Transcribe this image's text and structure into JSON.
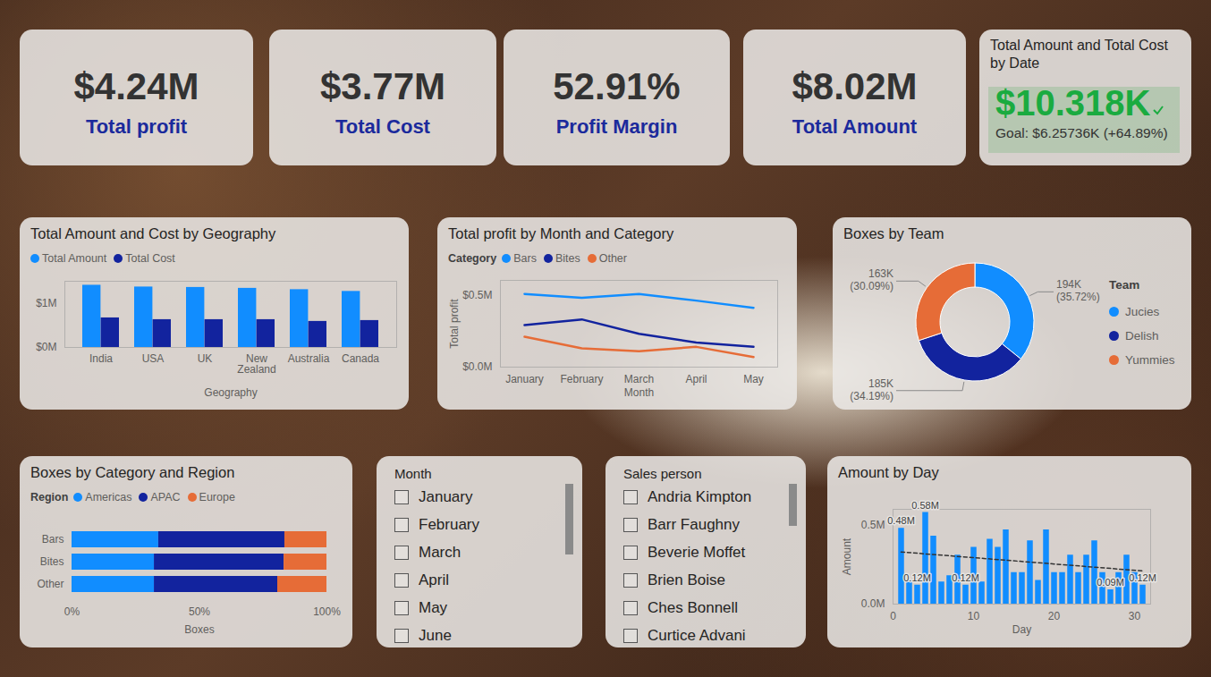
{
  "cards": [
    {
      "value": "$4.24M",
      "label": "Total profit"
    },
    {
      "value": "$3.77M",
      "label": "Total Cost"
    },
    {
      "value": "52.91%",
      "label": "Profit Margin"
    },
    {
      "value": "$8.02M",
      "label": "Total Amount"
    }
  ],
  "kpi": {
    "title": "Total Amount and Total Cost by Date",
    "value": "$10.318K",
    "goal": "Goal: $6.25736K (+64.89%)"
  },
  "chart_data": [
    {
      "type": "bar",
      "title": "Total Amount and Cost by Geography",
      "categories": [
        "India",
        "USA",
        "UK",
        "New Zealand",
        "Australia",
        "Canada"
      ],
      "series": [
        {
          "name": "Total Amount",
          "color": "#118DFF",
          "values": [
            1410000,
            1370000,
            1360000,
            1340000,
            1310000,
            1270000
          ]
        },
        {
          "name": "Total Cost",
          "color": "#12239E",
          "values": [
            670000,
            630000,
            630000,
            630000,
            590000,
            610000
          ]
        }
      ],
      "xlabel": "Geography",
      "ylim": [
        0,
        1500000
      ],
      "yticks": [
        {
          "value": 0,
          "label": "$0M"
        },
        {
          "value": 1000000,
          "label": "$1M"
        }
      ],
      "legend": "top",
      "grid": false
    },
    {
      "type": "line",
      "title": "Total profit by Month and Category",
      "categories": [
        "January",
        "February",
        "March",
        "April",
        "May"
      ],
      "series": [
        {
          "name": "Bars",
          "color": "#118DFF",
          "values": [
            506000,
            480000,
            506000,
            460000,
            410000
          ]
        },
        {
          "name": "Bites",
          "color": "#12239E",
          "values": [
            290000,
            330000,
            230000,
            170000,
            140000
          ]
        },
        {
          "name": "Other",
          "color": "#E66C37",
          "values": [
            210000,
            130000,
            110000,
            140000,
            70000
          ]
        }
      ],
      "xlabel": "Month",
      "ylabel": "Total profit",
      "ylim": [
        0,
        600000
      ],
      "yticks": [
        {
          "value": 0,
          "label": "$0.0M"
        },
        {
          "value": 500000,
          "label": "$0.5M"
        }
      ],
      "legend": "top",
      "legend_title": "Category",
      "grid": false
    },
    {
      "type": "pie",
      "title": "Boxes by Team",
      "categories": [
        "Jucies",
        "Delish",
        "Yummies"
      ],
      "values": [
        194000,
        185000,
        163000
      ],
      "value_labels": [
        "194K (35.72%)",
        "185K (34.19%)",
        "163K (30.09%)"
      ],
      "colors": [
        "#118DFF",
        "#12239E",
        "#E66C37"
      ],
      "legend": "right",
      "legend_title": "Team",
      "data_labels": true
    },
    {
      "type": "bar",
      "title": "Boxes by Category and Region",
      "orientation": "horizontal",
      "stacked": true,
      "categories": [
        "Bars",
        "Bites",
        "Other"
      ],
      "series": [
        {
          "name": "Americas",
          "color": "#118DFF",
          "values": [
            34,
            32.3,
            32.3
          ]
        },
        {
          "name": "APAC",
          "color": "#12239E",
          "values": [
            49.5,
            50.9,
            48.4
          ]
        },
        {
          "name": "Europe",
          "color": "#E66C37",
          "values": [
            16.5,
            16.8,
            19.3
          ]
        }
      ],
      "xlabel": "Boxes",
      "xlim": [
        0,
        100
      ],
      "xticks": [
        {
          "value": 0,
          "label": "0%"
        },
        {
          "value": 50,
          "label": "50%"
        },
        {
          "value": 100,
          "label": "100%"
        }
      ],
      "legend": "top",
      "legend_title": "Region",
      "grid": false
    },
    {
      "type": "bar",
      "title": "Amount by Day",
      "x": [
        1,
        2,
        3,
        4,
        5,
        6,
        7,
        8,
        9,
        10,
        11,
        12,
        13,
        14,
        15,
        16,
        17,
        18,
        19,
        20,
        21,
        22,
        23,
        24,
        25,
        26,
        27,
        28,
        29,
        30,
        31
      ],
      "values": [
        480000,
        150000,
        120000,
        580000,
        430000,
        140000,
        180000,
        310000,
        120000,
        360000,
        140000,
        410000,
        360000,
        470000,
        200000,
        200000,
        400000,
        150000,
        470000,
        200000,
        200000,
        310000,
        200000,
        310000,
        400000,
        200000,
        90000,
        200000,
        310000,
        200000,
        120000
      ],
      "value_labels": [
        "0.48M",
        null,
        "0.12M",
        "0.58M",
        null,
        null,
        null,
        null,
        "0.12M",
        null,
        null,
        null,
        null,
        null,
        null,
        null,
        null,
        null,
        null,
        null,
        null,
        null,
        null,
        null,
        null,
        null,
        "0.09M",
        null,
        null,
        null,
        "0.12M"
      ],
      "data_labels": true,
      "color": "#118DFF",
      "trendline": {
        "x": [
          1,
          31
        ],
        "values": [
          330000,
          210000
        ],
        "line_style": "dashed",
        "color": "#333333"
      },
      "xlabel": "Day",
      "ylabel": "Amount",
      "xlim": [
        0,
        32
      ],
      "xticks": [
        0,
        10,
        20,
        30
      ],
      "ylim": [
        0,
        600000
      ],
      "yticks": [
        {
          "value": 0,
          "label": "0.0M"
        },
        {
          "value": 500000,
          "label": "0.5M"
        }
      ],
      "grid": false
    }
  ],
  "slicers": [
    {
      "title": "Month",
      "items": [
        "January",
        "February",
        "March",
        "April",
        "May",
        "June"
      ]
    },
    {
      "title": "Sales person",
      "items": [
        "Andria Kimpton",
        "Barr Faughny",
        "Beverie Moffet",
        "Brien Boise",
        "Ches Bonnell",
        "Curtice Advani"
      ]
    }
  ]
}
